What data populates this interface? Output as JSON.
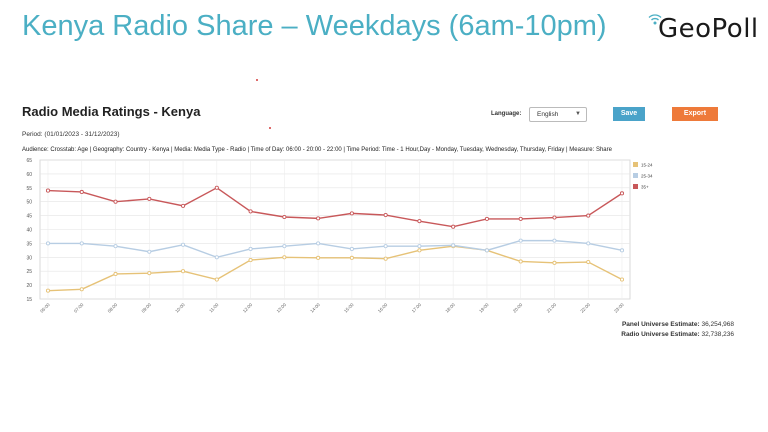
{
  "slide": {
    "title": "Kenya Radio Share – Weekdays (6am-10pm)"
  },
  "logo": {
    "text": "GeoPoll"
  },
  "report": {
    "title": "Radio Media Ratings - Kenya",
    "language_label": "Language:",
    "language_value": "English",
    "save_label": "Save",
    "export_label": "Export",
    "period": "Period: (01/01/2023 - 31/12/2023)",
    "audience": "Audience: Crosstab: Age | Geography: Country - Kenya | Media: Media Type - Radio | Time of Day: 06:00 - 20:00 - 22:00 | Time Period: Time - 1 Hour,Day - Monday, Tuesday, Wednesday, Thursday, Friday | Measure: Share",
    "panel_universe_label": "Panel Universe Estimate:",
    "panel_universe_value": "36,254,968",
    "radio_universe_label": "Radio Universe Estimate:",
    "radio_universe_value": "32,738,236"
  },
  "colors": {
    "accent": "#4bafc4",
    "save": "#4aa3c9",
    "export": "#ee7a3a"
  },
  "chart_data": {
    "type": "line",
    "title": "",
    "xlabel": "",
    "ylabel": "",
    "categories": [
      "06:00",
      "07:00",
      "08:00",
      "09:00",
      "10:00",
      "11:00",
      "12:00",
      "13:00",
      "14:00",
      "15:00",
      "16:00",
      "17:00",
      "18:00",
      "19:00",
      "20:00",
      "21:00",
      "22:00",
      "23:00"
    ],
    "ylim": [
      15,
      65
    ],
    "yticks": [
      15,
      20,
      25,
      30,
      35,
      40,
      45,
      50,
      55,
      60,
      65
    ],
    "grid": true,
    "legend_position": "right",
    "series": [
      {
        "name": "15-24",
        "color": "#e6c277",
        "values": [
          18,
          18.5,
          24,
          24.3,
          25,
          22,
          29,
          30,
          29.8,
          29.8,
          29.5,
          32.5,
          34,
          32.5,
          28.5,
          28,
          28.3,
          22
        ]
      },
      {
        "name": "25-34",
        "color": "#b7cde3",
        "values": [
          35,
          35,
          34,
          32,
          34.5,
          30,
          33,
          34,
          35,
          33,
          34,
          34,
          34.3,
          32.5,
          36,
          36,
          35,
          32.5
        ]
      },
      {
        "name": "35+",
        "color": "#c8585a",
        "values": [
          54,
          53.5,
          50,
          51,
          48.5,
          55,
          46.5,
          44.5,
          44,
          45.8,
          45.2,
          43,
          41,
          43.8,
          43.8,
          44.3,
          45,
          53
        ]
      }
    ]
  }
}
